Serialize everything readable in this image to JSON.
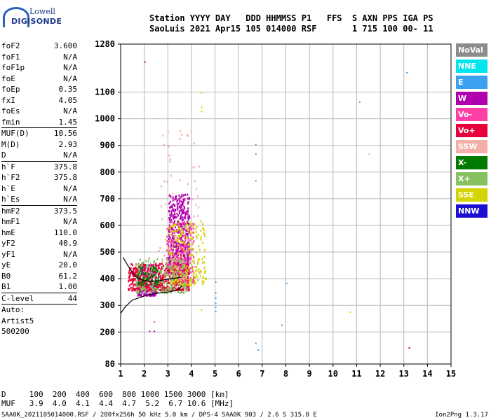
{
  "logo": {
    "line1": "Lowell",
    "line2": "DIGISONDE"
  },
  "header": {
    "line1": "Station YYYY DAY   DDD HHMMSS P1   FFS  S AXN PPS IGA PS",
    "line2": "SaoLuis 2021 Apr15 105 014000 RSF       1 715 100 00- 11"
  },
  "params": [
    {
      "label": "foF2",
      "value": "3.600"
    },
    {
      "label": "foF1",
      "value": "N/A"
    },
    {
      "label": "foF1p",
      "value": "N/A"
    },
    {
      "label": "foE",
      "value": "N/A"
    },
    {
      "label": "foEp",
      "value": "0.35"
    },
    {
      "label": "fxI",
      "value": "4.05"
    },
    {
      "label": "foEs",
      "value": "N/A"
    },
    {
      "label": "fmin",
      "value": "1.45",
      "sep": true
    },
    {
      "label": "MUF(D)",
      "value": "10.56"
    },
    {
      "label": "M(D)",
      "value": "2.93"
    },
    {
      "label": "D",
      "value": "N/A",
      "sep": true
    },
    {
      "label": "h`F",
      "value": "375.8"
    },
    {
      "label": "h`F2",
      "value": "375.8"
    },
    {
      "label": "h`E",
      "value": "N/A"
    },
    {
      "label": "h`Es",
      "value": "N/A",
      "sep": true
    },
    {
      "label": "hmF2",
      "value": "373.5"
    },
    {
      "label": "hmF1",
      "value": "N/A"
    },
    {
      "label": "hmE",
      "value": "110.0"
    },
    {
      "label": "yF2",
      "value": "40.9"
    },
    {
      "label": "yF1",
      "value": "N/A"
    },
    {
      "label": "yE",
      "value": "20.0"
    },
    {
      "label": "B0",
      "value": "61.2"
    },
    {
      "label": "B1",
      "value": "1.00",
      "sep": true
    },
    {
      "label": "C-level",
      "value": "44",
      "sep": true
    },
    {
      "label": "Auto:",
      "value": ""
    },
    {
      "label": "Artist5",
      "value": ""
    },
    {
      "label": "500200",
      "value": ""
    }
  ],
  "legend": [
    {
      "label": "NoVal",
      "color": "#8c8c8c"
    },
    {
      "label": "NNE",
      "color": "#00e5ee"
    },
    {
      "label": "E",
      "color": "#3aa0f0"
    },
    {
      "label": "W",
      "color": "#b000b0"
    },
    {
      "label": "Vo-",
      "color": "#ff3fa6"
    },
    {
      "label": "Vo+",
      "color": "#e8003a"
    },
    {
      "label": "SSW",
      "color": "#f4b0a8"
    },
    {
      "label": "X-",
      "color": "#007a00"
    },
    {
      "label": "X+",
      "color": "#86c060"
    },
    {
      "label": "SSE",
      "color": "#d4d400"
    },
    {
      "label": "NNW",
      "color": "#1c10d0"
    }
  ],
  "bottom": {
    "line1": "D     100  200  400  600  800 1000 1500 3000 [km]",
    "line2": "MUF   3.9  4.0  4.1  4.4  4.7  5.2  6.7 10.6 [MHz]"
  },
  "footer": {
    "left": "SAA0K_2021105014000.RSF / 280fx256h 50 kHz 5.0 km / DPS-4 SAA0K 903 / 2.6 S 315.8 E",
    "right": "Ion2Png 1.3.17"
  },
  "chart_data": {
    "type": "scatter",
    "xlim": [
      1,
      15
    ],
    "ylim": [
      80,
      1280
    ],
    "x_ticks": [
      1,
      2,
      3,
      4,
      5,
      6,
      7,
      8,
      9,
      10,
      11,
      12,
      13,
      14,
      15
    ],
    "y_ticks": [
      80,
      200,
      300,
      400,
      500,
      600,
      700,
      800,
      900,
      1000,
      1100,
      1280
    ],
    "grid": true,
    "clusters": [
      {
        "direction": "W",
        "x_range": [
          3.0,
          3.9
        ],
        "y_range": [
          420,
          720
        ],
        "density": "high"
      },
      {
        "direction": "W",
        "x_range": [
          1.7,
          2.5
        ],
        "y_range": [
          340,
          460
        ],
        "density": "medium"
      },
      {
        "direction": "Vo+",
        "x_range": [
          1.3,
          3.9
        ],
        "y_range": [
          360,
          460
        ],
        "density": "high"
      },
      {
        "direction": "Vo-",
        "x_range": [
          2.9,
          4.1
        ],
        "y_range": [
          390,
          620
        ],
        "density": "medium"
      },
      {
        "direction": "SSE",
        "x_range": [
          3.0,
          4.6
        ],
        "y_range": [
          380,
          620
        ],
        "density": "medium"
      },
      {
        "direction": "SSW",
        "x_range": [
          2.6,
          4.3
        ],
        "y_range": [
          420,
          960
        ],
        "density": "low"
      },
      {
        "direction": "X+",
        "x_range": [
          1.6,
          3.8
        ],
        "y_range": [
          350,
          480
        ],
        "density": "medium"
      },
      {
        "direction": "X-",
        "x_range": [
          1.7,
          2.6
        ],
        "y_range": [
          380,
          450
        ],
        "density": "low"
      }
    ],
    "isolated_points": [
      {
        "direction": "W",
        "x": 2.0,
        "y": 1215
      },
      {
        "direction": "SSE",
        "x": 4.4,
        "y": 1100
      },
      {
        "direction": "SSE",
        "x": 4.4,
        "y": 1045
      },
      {
        "direction": "SSE",
        "x": 4.4,
        "y": 1030
      },
      {
        "direction": "E",
        "x": 6.7,
        "y": 905
      },
      {
        "direction": "E",
        "x": 6.7,
        "y": 870
      },
      {
        "direction": "E",
        "x": 6.7,
        "y": 770
      },
      {
        "direction": "E",
        "x": 5.0,
        "y": 390
      },
      {
        "direction": "E",
        "x": 5.0,
        "y": 350
      },
      {
        "direction": "E",
        "x": 5.0,
        "y": 330
      },
      {
        "direction": "E",
        "x": 5.0,
        "y": 310
      },
      {
        "direction": "E",
        "x": 5.0,
        "y": 295
      },
      {
        "direction": "E",
        "x": 5.0,
        "y": 280
      },
      {
        "direction": "E",
        "x": 8.0,
        "y": 385
      },
      {
        "direction": "E",
        "x": 7.8,
        "y": 228
      },
      {
        "direction": "E",
        "x": 6.7,
        "y": 160
      },
      {
        "direction": "E",
        "x": 6.8,
        "y": 135
      },
      {
        "direction": "E",
        "x": 11.1,
        "y": 1065
      },
      {
        "direction": "E",
        "x": 13.1,
        "y": 1175
      },
      {
        "direction": "SSW",
        "x": 11.5,
        "y": 870
      },
      {
        "direction": "SSE",
        "x": 10.7,
        "y": 277
      },
      {
        "direction": "SSE",
        "x": 4.4,
        "y": 285
      },
      {
        "direction": "Vo+",
        "x": 13.2,
        "y": 143
      },
      {
        "direction": "W",
        "x": 2.2,
        "y": 205
      },
      {
        "direction": "W",
        "x": 2.4,
        "y": 205
      },
      {
        "direction": "Vo-",
        "x": 2.4,
        "y": 240
      }
    ],
    "profile_curve": [
      [
        1.0,
        270
      ],
      [
        1.2,
        295
      ],
      [
        1.5,
        320
      ],
      [
        2.0,
        335
      ],
      [
        2.5,
        345
      ],
      [
        3.0,
        350
      ],
      [
        3.3,
        355
      ],
      [
        3.5,
        362
      ],
      [
        3.6,
        374
      ]
    ],
    "trace_curve": [
      [
        1.1,
        480
      ],
      [
        1.3,
        450
      ],
      [
        1.6,
        410
      ],
      [
        1.9,
        395
      ],
      [
        2.2,
        390
      ],
      [
        2.6,
        392
      ],
      [
        3.0,
        398
      ],
      [
        3.3,
        402
      ],
      [
        3.55,
        405
      ]
    ]
  }
}
